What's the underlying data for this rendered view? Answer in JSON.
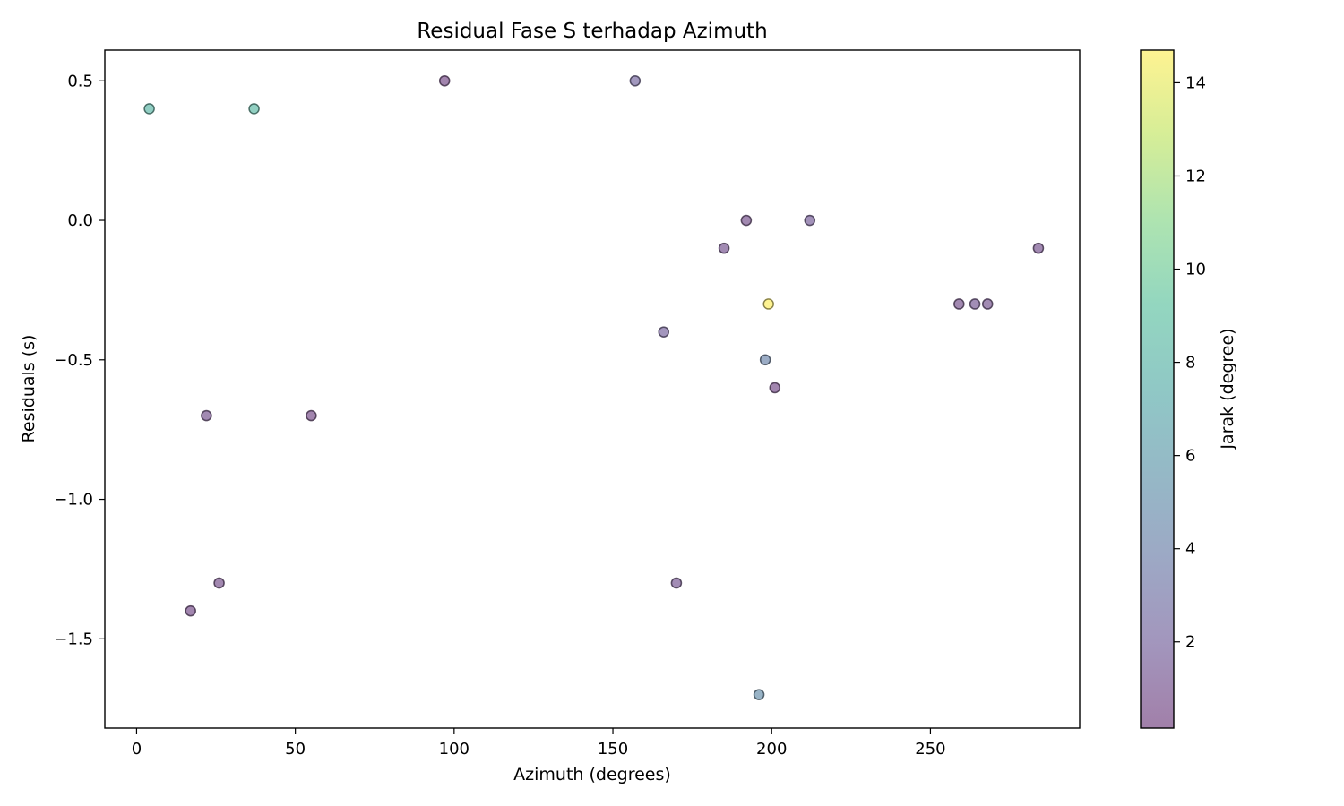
{
  "chart_data": {
    "type": "scatter",
    "title": "Residual Fase S terhadap Azimuth",
    "xlabel": "Azimuth (degrees)",
    "ylabel": "Residuals (s)",
    "xlim": [
      -10,
      297
    ],
    "ylim": [
      -1.82,
      0.61
    ],
    "xticks": [
      0,
      50,
      100,
      150,
      200,
      250
    ],
    "yticks": [
      0.5,
      0.0,
      -0.5,
      -1.0,
      -1.5
    ],
    "ytick_labels": [
      "0.5",
      "0.0",
      "−0.5",
      "−1.0",
      "−1.5"
    ],
    "grid": false,
    "colorbar": {
      "label": "Jarak (degree)",
      "colormap": "viridis",
      "range": [
        0.15,
        14.7
      ],
      "ticks": [
        2,
        4,
        6,
        8,
        10,
        12,
        14
      ],
      "alpha": 0.5
    },
    "points": [
      {
        "x": 4,
        "y": 0.4,
        "c": 8.2
      },
      {
        "x": 37,
        "y": 0.4,
        "c": 8.4
      },
      {
        "x": 97,
        "y": 0.5,
        "c": 0.6
      },
      {
        "x": 157,
        "y": 0.5,
        "c": 2.2
      },
      {
        "x": 192,
        "y": 0.0,
        "c": 0.9
      },
      {
        "x": 212,
        "y": 0.0,
        "c": 1.6
      },
      {
        "x": 185,
        "y": -0.1,
        "c": 1.1
      },
      {
        "x": 284,
        "y": -0.1,
        "c": 1.0
      },
      {
        "x": 199,
        "y": -0.3,
        "c": 14.7
      },
      {
        "x": 259,
        "y": -0.3,
        "c": 0.9
      },
      {
        "x": 264,
        "y": -0.3,
        "c": 1.3
      },
      {
        "x": 268,
        "y": -0.3,
        "c": 1.1
      },
      {
        "x": 166,
        "y": -0.4,
        "c": 2.0
      },
      {
        "x": 198,
        "y": -0.5,
        "c": 4.2
      },
      {
        "x": 201,
        "y": -0.6,
        "c": 0.7
      },
      {
        "x": 22,
        "y": -0.7,
        "c": 1.0
      },
      {
        "x": 55,
        "y": -0.7,
        "c": 0.6
      },
      {
        "x": 26,
        "y": -1.3,
        "c": 0.8
      },
      {
        "x": 170,
        "y": -1.3,
        "c": 1.2
      },
      {
        "x": 17,
        "y": -1.4,
        "c": 0.7
      },
      {
        "x": 196,
        "y": -1.7,
        "c": 5.0
      }
    ]
  }
}
